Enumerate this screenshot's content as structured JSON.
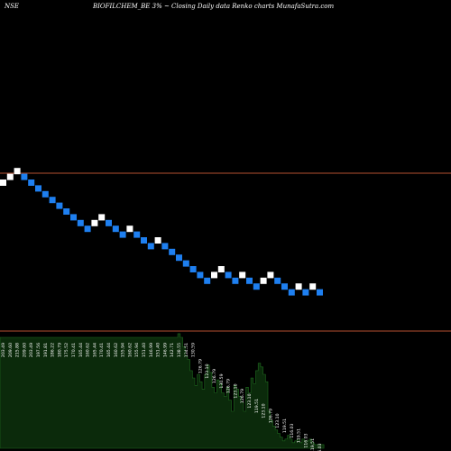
{
  "header": {
    "exchange": "NSE",
    "title": "BIOFILCHEM_BE 3% ~ Closing Daily data  Renko  charts MunafaSutra.com"
  },
  "colors": {
    "background": "#000000",
    "up_brick": "#ffffff",
    "down_brick": "#1e7ff0",
    "reference_line": "#b4502f",
    "volume_fill": "#0b2a0b",
    "volume_edge": "#1f6a1f",
    "label": "#ffffff"
  },
  "chart_data": {
    "type": "renko",
    "box_size_pct": 3,
    "reference_lines": [
      {
        "level": "upper"
      },
      {
        "level": "lower"
      }
    ],
    "bricks": [
      {
        "dir": "up",
        "row": 0
      },
      {
        "dir": "up",
        "row": 1
      },
      {
        "dir": "up",
        "row": 2
      },
      {
        "dir": "down",
        "row": 1
      },
      {
        "dir": "down",
        "row": 0
      },
      {
        "dir": "down",
        "row": -1
      },
      {
        "dir": "down",
        "row": -2
      },
      {
        "dir": "down",
        "row": -3
      },
      {
        "dir": "down",
        "row": -4
      },
      {
        "dir": "down",
        "row": -5
      },
      {
        "dir": "down",
        "row": -6
      },
      {
        "dir": "down",
        "row": -7
      },
      {
        "dir": "down",
        "row": -8
      },
      {
        "dir": "up",
        "row": -7
      },
      {
        "dir": "up",
        "row": -6
      },
      {
        "dir": "down",
        "row": -7
      },
      {
        "dir": "down",
        "row": -8
      },
      {
        "dir": "down",
        "row": -9
      },
      {
        "dir": "up",
        "row": -8
      },
      {
        "dir": "down",
        "row": -9
      },
      {
        "dir": "down",
        "row": -10
      },
      {
        "dir": "down",
        "row": -11
      },
      {
        "dir": "up",
        "row": -10
      },
      {
        "dir": "down",
        "row": -11
      },
      {
        "dir": "down",
        "row": -12
      },
      {
        "dir": "down",
        "row": -13
      },
      {
        "dir": "down",
        "row": -14
      },
      {
        "dir": "down",
        "row": -15
      },
      {
        "dir": "down",
        "row": -16
      },
      {
        "dir": "down",
        "row": -17
      },
      {
        "dir": "up",
        "row": -16
      },
      {
        "dir": "up",
        "row": -15
      },
      {
        "dir": "down",
        "row": -16
      },
      {
        "dir": "down",
        "row": -17
      },
      {
        "dir": "up",
        "row": -16
      },
      {
        "dir": "down",
        "row": -17
      },
      {
        "dir": "down",
        "row": -18
      },
      {
        "dir": "up",
        "row": -17
      },
      {
        "dir": "up",
        "row": -16
      },
      {
        "dir": "down",
        "row": -17
      },
      {
        "dir": "down",
        "row": -18
      },
      {
        "dir": "down",
        "row": -19
      },
      {
        "dir": "up",
        "row": -18
      },
      {
        "dir": "down",
        "row": -19
      },
      {
        "dir": "up",
        "row": -18
      },
      {
        "dir": "down",
        "row": -19
      }
    ],
    "price_labels": [
      "203.49",
      "209.60",
      "215.88",
      "209.60",
      "203.49",
      "197.56",
      "191.81",
      "186.22",
      "180.79",
      "175.52",
      "170.41",
      "165.44",
      "160.62",
      "165.44",
      "170.41",
      "165.44",
      "160.62",
      "155.94",
      "160.62",
      "155.94",
      "151.40",
      "146.99",
      "151.40",
      "146.99",
      "142.71",
      "138.55",
      "134.51",
      "130.59",
      "126.79",
      "123.10",
      "126.79",
      "130.59",
      "126.79",
      "123.10",
      "126.79",
      "123.10",
      "119.51",
      "123.10",
      "126.79",
      "123.10",
      "119.51",
      "116.03",
      "119.51",
      "116.03",
      "119.51",
      "116.03"
    ],
    "volume": [
      0.6,
      0.6,
      0.6,
      0.6,
      0.6,
      0.6,
      0.6,
      0.6,
      0.6,
      0.6,
      0.6,
      0.6,
      0.6,
      0.6,
      0.6,
      0.6,
      0.6,
      0.6,
      0.6,
      0.6,
      0.6,
      0.6,
      0.6,
      0.6,
      0.6,
      0.6,
      0.6,
      0.6,
      0.6,
      0.6,
      0.6,
      0.6,
      0.6,
      0.6,
      0.6,
      0.6,
      0.6,
      0.6,
      0.6,
      0.6,
      0.6,
      0.6,
      0.6,
      0.6,
      0.6,
      0.6,
      0.6,
      0.6,
      0.6,
      0.6,
      0.6,
      0.6,
      0.6,
      0.6,
      0.6,
      0.6,
      0.6,
      0.6,
      0.6,
      0.6,
      0.6,
      0.6,
      0.6,
      0.6,
      0.6,
      0.6,
      0.6,
      0.6,
      0.6,
      0.6,
      0.6,
      0.6,
      0.6,
      0.62,
      0.6,
      0.55,
      0.5,
      0.48,
      0.42,
      0.38,
      0.34,
      0.4,
      0.36,
      0.32,
      0.4,
      0.45,
      0.41,
      0.33,
      0.3,
      0.37,
      0.35,
      0.3,
      0.28,
      0.33,
      0.26,
      0.2,
      0.34,
      0.32,
      0.28,
      0.25,
      0.2,
      0.33,
      0.3,
      0.38,
      0.35,
      0.42,
      0.46,
      0.44,
      0.4,
      0.36,
      0.2,
      0.15,
      0.12,
      0.1,
      0.08,
      0.06,
      0.04,
      0.05,
      0.07,
      0.05,
      0.03,
      0.04,
      0.05,
      0.03,
      0.05,
      0.04,
      0.04,
      0.05,
      0.03,
      0.02,
      0.02,
      0.02,
      0.02
    ]
  }
}
